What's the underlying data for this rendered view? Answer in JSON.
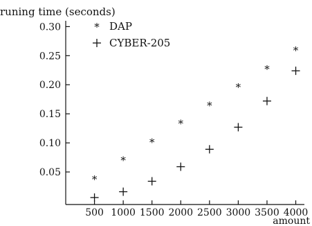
{
  "chart_data": {
    "type": "scatter",
    "title": "",
    "ylabel": "runing time (seconds)",
    "xlabel": "amount",
    "x": [
      500,
      1000,
      1500,
      2000,
      2500,
      3000,
      3500,
      4000
    ],
    "xticks": [
      "500",
      "1000",
      "1500",
      "2000",
      "2500",
      "3000",
      "3500",
      "4000"
    ],
    "yticks": [
      "0.30",
      "0.25",
      "0.20",
      "0.15",
      "0.10",
      "0.05"
    ],
    "xlim": [
      0,
      4150
    ],
    "ylim": [
      -0.006,
      0.31
    ],
    "grid": false,
    "legend_position": "top-left",
    "series": [
      {
        "name": "DAP",
        "marker": "star",
        "values": [
          0.038,
          0.071,
          0.102,
          0.134,
          0.165,
          0.197,
          0.228,
          0.26
        ]
      },
      {
        "name": "CYBER-205",
        "marker": "plus",
        "values": [
          0.006,
          0.016,
          0.034,
          0.059,
          0.089,
          0.127,
          0.172,
          0.224
        ]
      }
    ]
  }
}
